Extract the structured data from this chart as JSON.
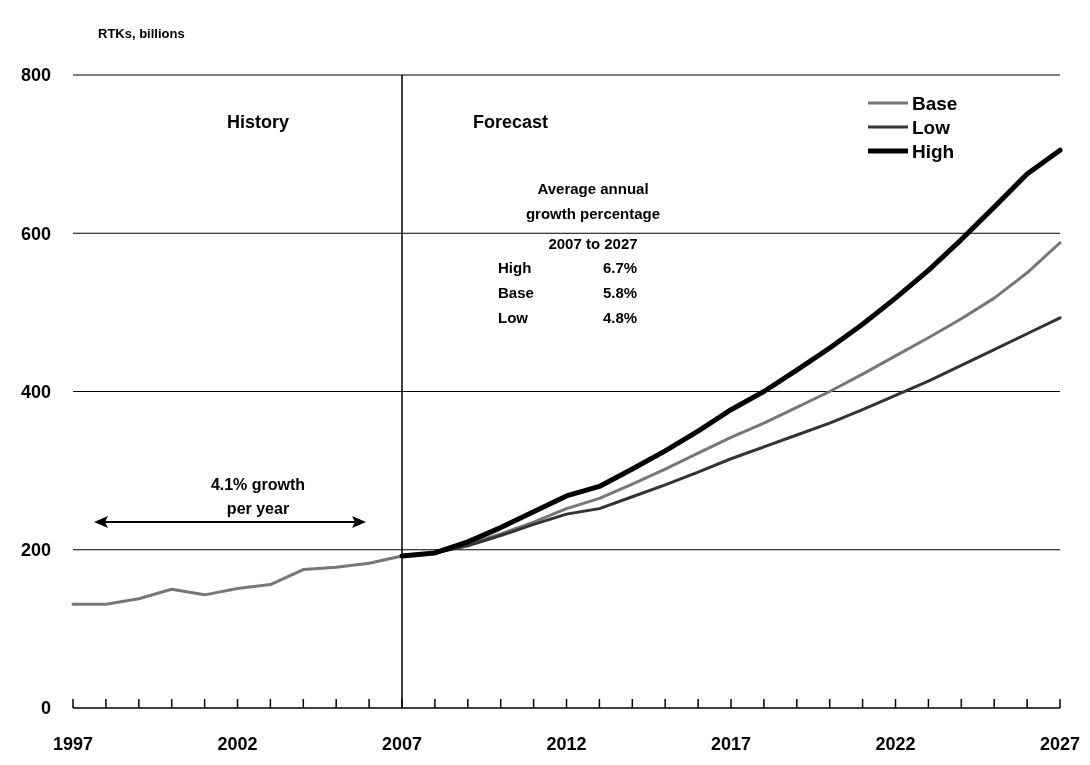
{
  "chart_data": {
    "type": "line",
    "ylabel": "RTKs, billions",
    "x": [
      1997,
      1998,
      1999,
      2000,
      2001,
      2002,
      2003,
      2004,
      2005,
      2006,
      2007,
      2008,
      2009,
      2010,
      2011,
      2012,
      2013,
      2014,
      2015,
      2016,
      2017,
      2018,
      2019,
      2020,
      2021,
      2022,
      2023,
      2024,
      2025,
      2026,
      2027
    ],
    "series": [
      {
        "name": "Base",
        "color": "#777777",
        "values": [
          131,
          131,
          138,
          150,
          143,
          151,
          156,
          175,
          178,
          183,
          192,
          196,
          207,
          220,
          235,
          252,
          265,
          283,
          302,
          322,
          342,
          360,
          380,
          400,
          422,
          445,
          468,
          492,
          518,
          550,
          588
        ]
      },
      {
        "name": "Low",
        "color": "#333333",
        "values": [
          null,
          null,
          null,
          null,
          null,
          null,
          null,
          null,
          null,
          null,
          192,
          196,
          205,
          218,
          232,
          245,
          252,
          267,
          282,
          298,
          315,
          330,
          345,
          360,
          377,
          395,
          413,
          433,
          453,
          473,
          493
        ]
      },
      {
        "name": "High",
        "color": "#000000",
        "values": [
          null,
          null,
          null,
          null,
          null,
          null,
          null,
          null,
          null,
          null,
          192,
          196,
          210,
          228,
          248,
          268,
          280,
          302,
          325,
          350,
          377,
          400,
          427,
          455,
          485,
          518,
          553,
          592,
          633,
          675,
          705
        ]
      }
    ],
    "xlim": [
      1997,
      2027
    ],
    "xticks": [
      1997,
      {
        "value": 1998,
        "label": null
      },
      {
        "value": 1999,
        "label": null
      },
      {
        "value": 2000,
        "label": null
      },
      {
        "value": 2001,
        "label": null
      },
      2002,
      {
        "value": 2003,
        "label": null
      },
      {
        "value": 2004,
        "label": null
      },
      {
        "value": 2005,
        "label": null
      },
      {
        "value": 2006,
        "label": null
      },
      2007,
      {
        "value": 2008,
        "label": null
      },
      {
        "value": 2009,
        "label": null
      },
      {
        "value": 2010,
        "label": null
      },
      {
        "value": 2011,
        "label": null
      },
      2012,
      {
        "value": 2013,
        "label": null
      },
      {
        "value": 2014,
        "label": null
      },
      {
        "value": 2015,
        "label": null
      },
      {
        "value": 2016,
        "label": null
      },
      2017,
      {
        "value": 2018,
        "label": null
      },
      {
        "value": 2019,
        "label": null
      },
      {
        "value": 2020,
        "label": null
      },
      {
        "value": 2021,
        "label": null
      },
      2022,
      {
        "value": 2023,
        "label": null
      },
      {
        "value": 2024,
        "label": null
      },
      {
        "value": 2025,
        "label": null
      },
      {
        "value": 2026,
        "label": null
      },
      2027
    ],
    "ylim": [
      0,
      800
    ],
    "yticks": [
      0,
      200,
      400,
      600,
      800
    ],
    "grid": "y",
    "legend": "top right",
    "line_style": "solid",
    "ref_lines": [
      {
        "axis": "x",
        "value": 2007,
        "color": "#000000"
      }
    ],
    "annotations": [
      "History",
      "Forecast",
      "Average annual",
      "growth percentage",
      "2007  to 2027",
      "High 6.7%",
      "Base 5.8%",
      "Low 4.8%",
      "4.1% growth",
      "per year"
    ]
  }
}
